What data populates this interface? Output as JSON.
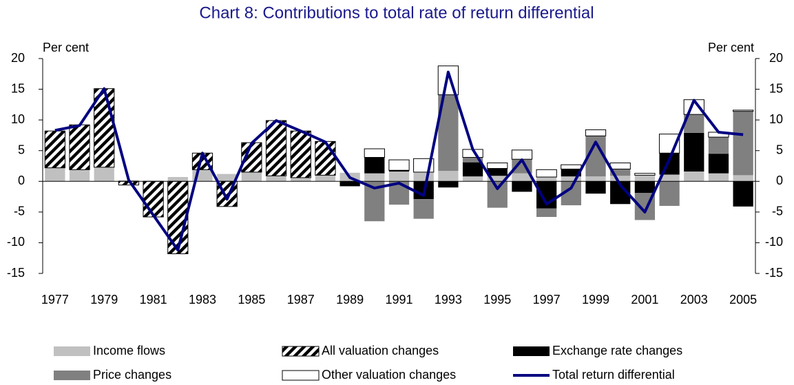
{
  "chart_data": {
    "type": "bar",
    "stacked": true,
    "title": "Chart 8: Contributions to total rate of return differential",
    "y_axis_label": "Per cent",
    "y2_axis_label": "Per cent",
    "categories": [
      "1977",
      null,
      "1979",
      null,
      "1981",
      null,
      "1983",
      null,
      "1985",
      null,
      "1987",
      null,
      "1989",
      null,
      "1991",
      null,
      "1993",
      null,
      "1995",
      null,
      "1997",
      null,
      "1999",
      null,
      "2001",
      null,
      "2003",
      null,
      "2005"
    ],
    "ylim": [
      -15,
      20
    ],
    "yticks": [
      -15,
      -10,
      -5,
      0,
      5,
      10,
      15,
      20
    ],
    "y2lim": [
      -15,
      20
    ],
    "y2ticks": [
      -15,
      -10,
      -5,
      0,
      5,
      10,
      15,
      20
    ],
    "series": [
      {
        "name": "Income flows",
        "type": "bar",
        "color": "#c0c0c0",
        "values": [
          2.2,
          1.9,
          2.3,
          0.2,
          0.1,
          0.7,
          1.9,
          1.2,
          1.5,
          0.9,
          0.6,
          1.0,
          1.4,
          1.3,
          1.6,
          1.5,
          1.7,
          0.8,
          0.9,
          1.3,
          0.7,
          0.8,
          0.8,
          0.9,
          1.0,
          1.1,
          1.6,
          1.3,
          1.0
        ]
      },
      {
        "name": "All valuation changes",
        "type": "bar",
        "color": "hatch",
        "values": [
          6.0,
          7.3,
          12.8,
          -0.6,
          -5.8,
          -11.8,
          2.7,
          -4.1,
          4.8,
          9.0,
          7.6,
          5.5,
          null,
          null,
          null,
          null,
          null,
          null,
          null,
          null,
          null,
          null,
          null,
          null,
          null,
          null,
          null,
          null,
          null
        ]
      },
      {
        "name": "Exchange rate changes",
        "type": "bar",
        "color": "#000000",
        "values": [
          null,
          null,
          null,
          null,
          null,
          null,
          null,
          null,
          null,
          null,
          null,
          null,
          -0.8,
          2.6,
          0.2,
          -2.9,
          -1.0,
          2.3,
          1.2,
          -1.7,
          -4.4,
          1.2,
          -2.0,
          -3.7,
          -1.9,
          3.5,
          6.3,
          3.2,
          -4.1
        ]
      },
      {
        "name": "Price changes",
        "type": "bar",
        "color": "#808080",
        "values": [
          null,
          null,
          null,
          null,
          null,
          null,
          null,
          null,
          null,
          null,
          null,
          null,
          0,
          -6.5,
          -3.8,
          -3.2,
          12.4,
          0.8,
          -4.3,
          2.3,
          -1.4,
          -3.9,
          6.6,
          1.1,
          -4.4,
          -4.0,
          3.0,
          2.7,
          10.4
        ]
      },
      {
        "name": "Other valuation changes",
        "type": "bar",
        "color": "#ffffff",
        "values": [
          null,
          null,
          null,
          null,
          null,
          null,
          null,
          null,
          null,
          null,
          null,
          null,
          0,
          1.4,
          1.7,
          2.2,
          4.7,
          1.3,
          0.9,
          1.5,
          1.2,
          0.7,
          1.0,
          1.0,
          0.3,
          3.1,
          2.4,
          0.8,
          0.2
        ]
      },
      {
        "name": "Total return differential",
        "type": "line",
        "color": "#000080",
        "values": [
          8.3,
          9.1,
          15.1,
          0.2,
          -5.5,
          -11.2,
          4.6,
          -2.9,
          6.2,
          9.9,
          8.2,
          6.4,
          0.6,
          -1.1,
          -0.3,
          -2.3,
          17.8,
          5.2,
          -1.2,
          3.5,
          -3.7,
          -1.1,
          6.4,
          -0.6,
          -5.0,
          3.6,
          13.2,
          8.0,
          7.6
        ]
      }
    ]
  }
}
